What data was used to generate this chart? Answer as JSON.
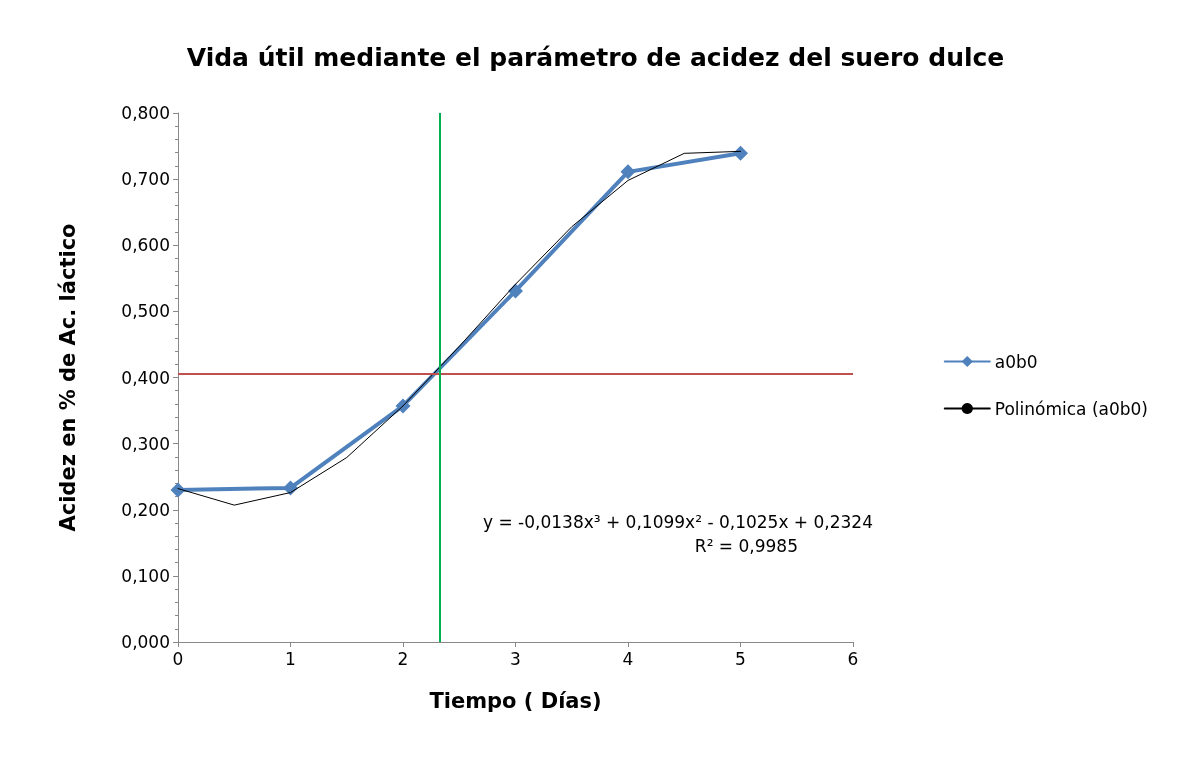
{
  "chart_data": {
    "type": "line",
    "title": "Vida útil mediante el parámetro de acidez del suero dulce",
    "xlabel": "Tiempo ( Días)",
    "ylabel": "Acidez en % de Ac. láctico",
    "x": [
      0,
      1,
      2,
      3,
      4,
      5
    ],
    "series": [
      {
        "name": "a0b0",
        "color": "#4f81bd",
        "values": [
          0.23,
          0.233,
          0.357,
          0.531,
          0.711,
          0.739
        ],
        "marker": "diamond"
      },
      {
        "name": "Polinómica (a0b0)",
        "color": "#000000",
        "x": [
          0,
          0.5,
          1,
          1.5,
          2,
          2.5,
          3,
          3.5,
          4,
          4.5,
          5
        ],
        "values": [
          0.232,
          0.207,
          0.226,
          0.279,
          0.357,
          0.447,
          0.541,
          0.628,
          0.698,
          0.739,
          0.742
        ],
        "marker": "none"
      }
    ],
    "xlim": [
      0,
      6
    ],
    "xticks": [
      0,
      1,
      2,
      3,
      4,
      5,
      6
    ],
    "ylim": [
      0,
      0.8
    ],
    "yticks": [
      {
        "value": 0,
        "label": "0,000"
      },
      {
        "value": 0.1,
        "label": "0,100"
      },
      {
        "value": 0.2,
        "label": "0,200"
      },
      {
        "value": 0.3,
        "label": "0,300"
      },
      {
        "value": 0.4,
        "label": "0,400"
      },
      {
        "value": 0.5,
        "label": "0,500"
      },
      {
        "value": 0.6,
        "label": "0,600"
      },
      {
        "value": 0.7,
        "label": "0,700"
      },
      {
        "value": 0.8,
        "label": "0,800"
      }
    ],
    "ref_lines": [
      {
        "axis": "y",
        "value": 0.405,
        "color": "#c0504d"
      },
      {
        "axis": "x",
        "value": 2.33,
        "color": "#00b050"
      }
    ],
    "annotations": [
      "y = -0,0138x³ + 0,1099x² - 0,1025x + 0,2324",
      "R² = 0,9985"
    ],
    "legend": "right",
    "line_style": "solid"
  }
}
